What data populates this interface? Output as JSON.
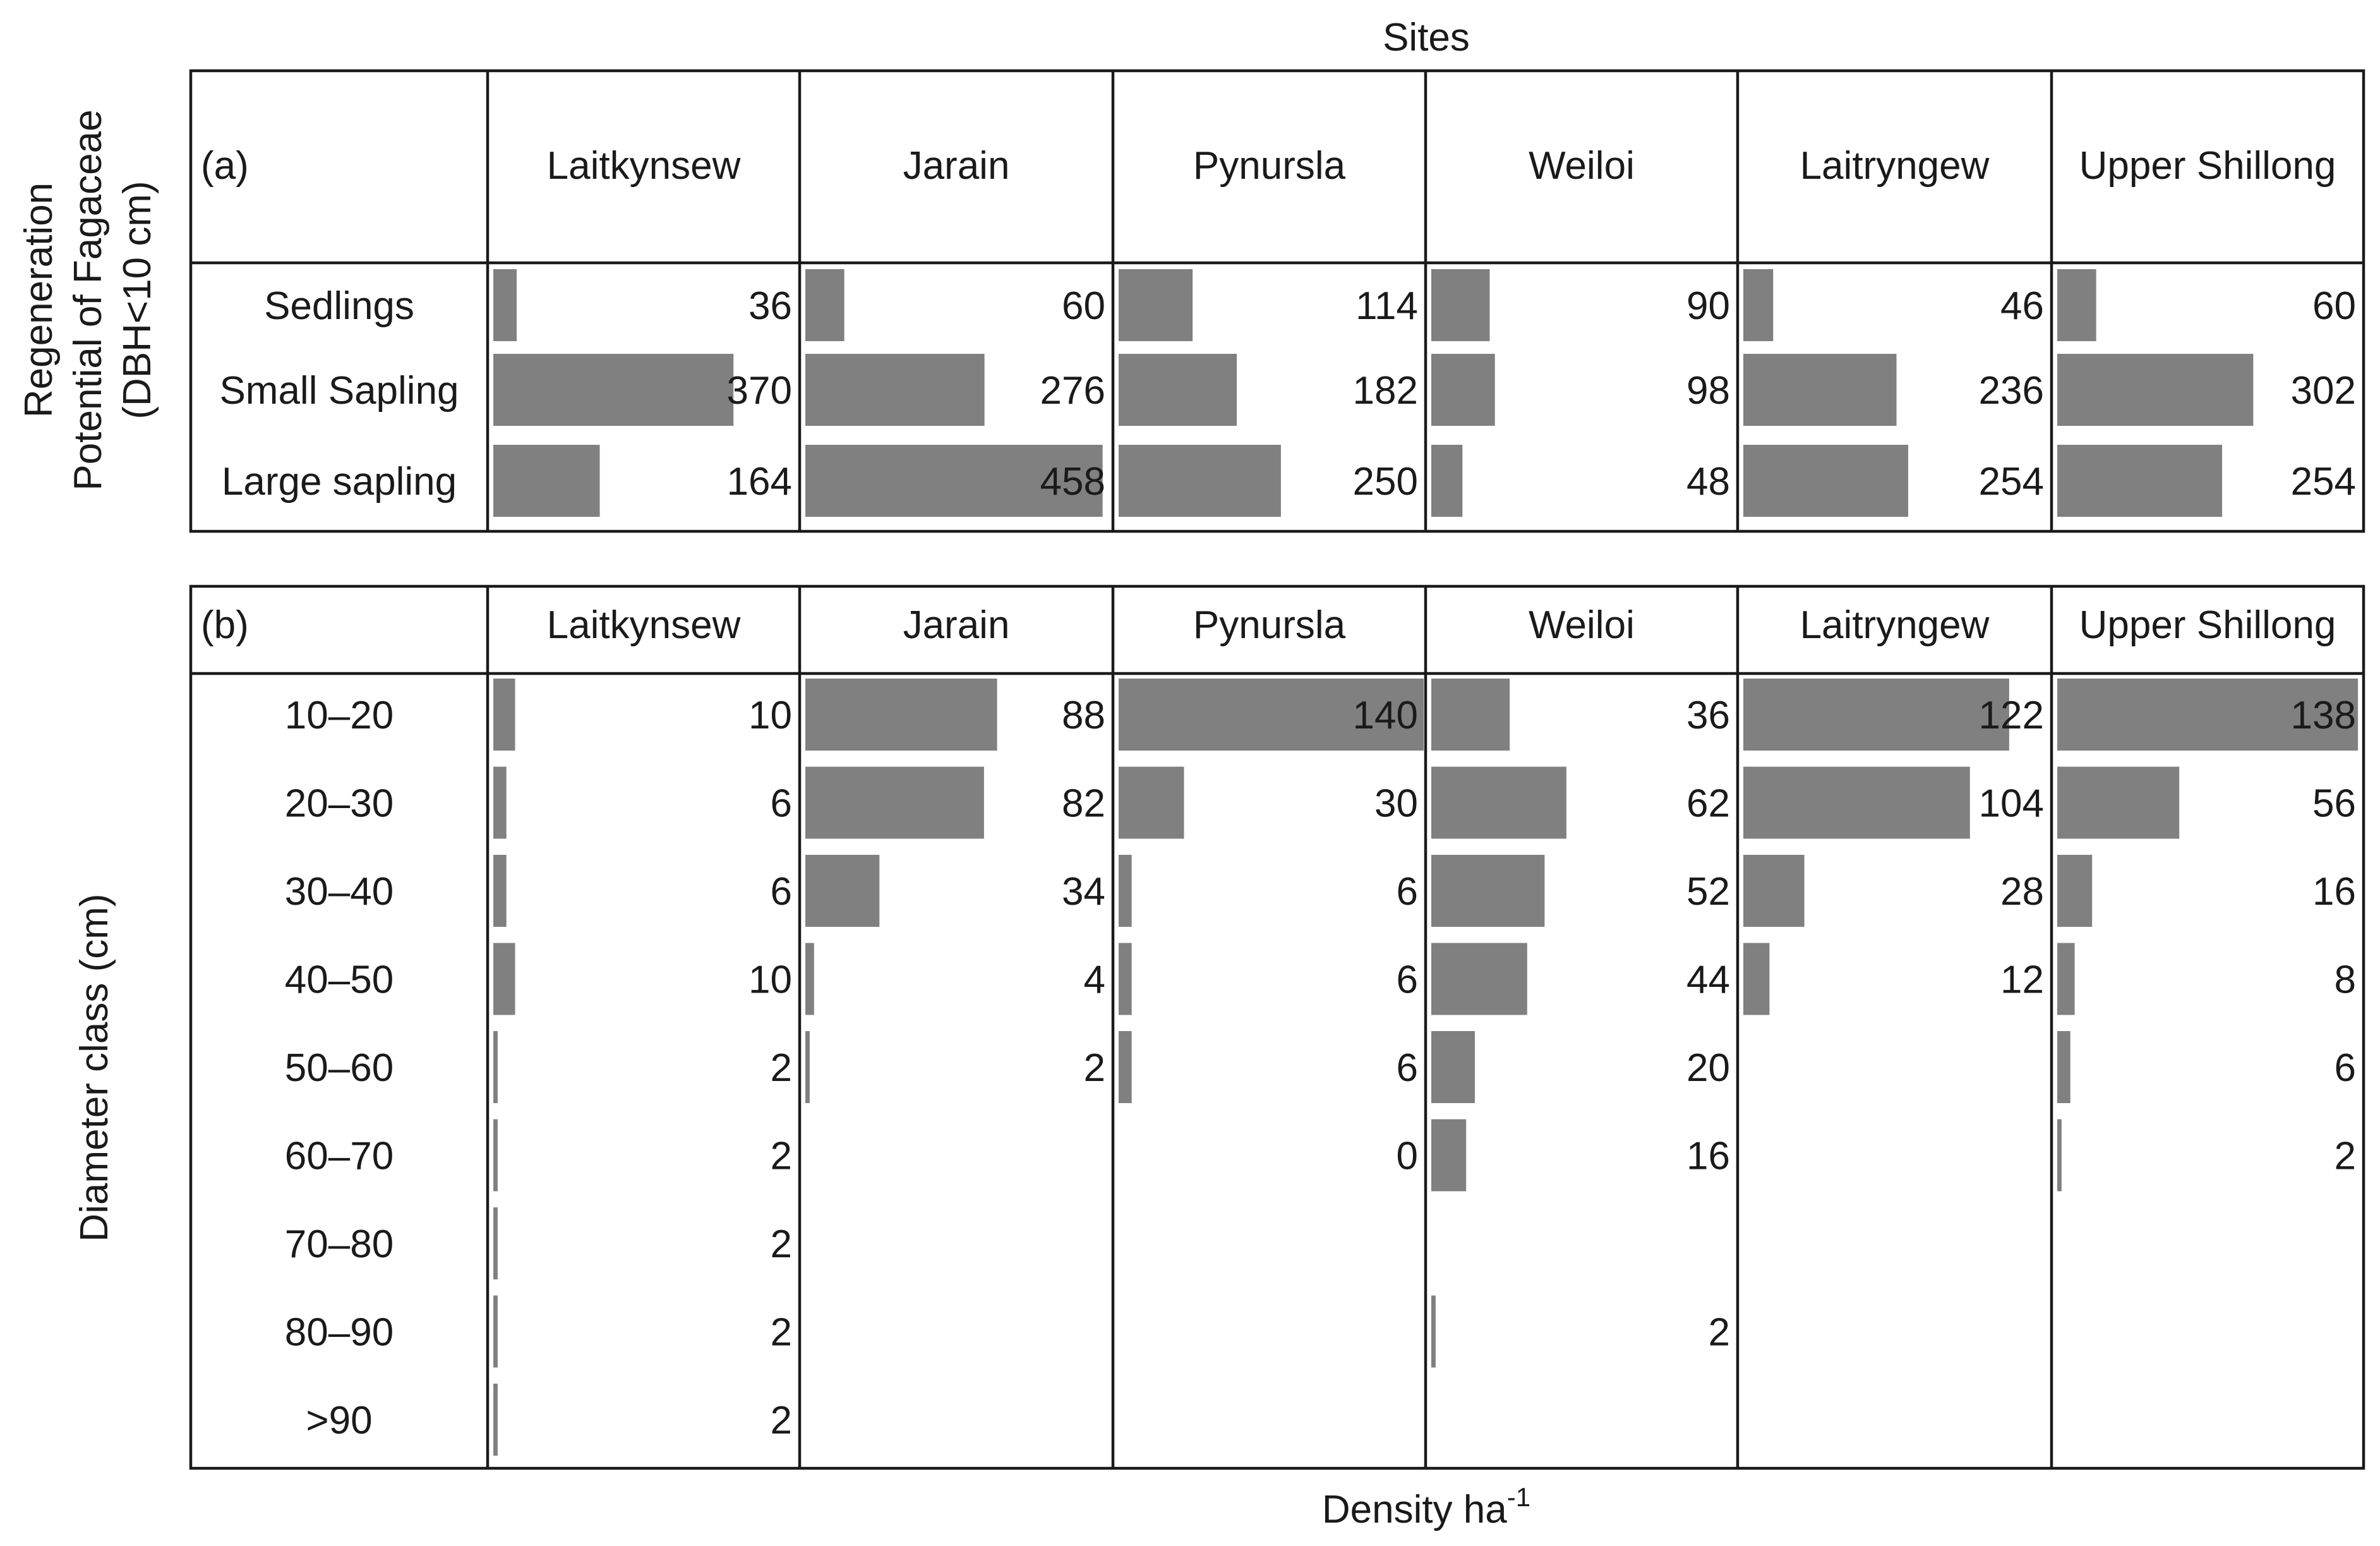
{
  "figure": {
    "sites_label": "Sites",
    "x_label": "Density ha",
    "x_label_superscript": "-1"
  },
  "bar_color": "#808080",
  "chart_data": [
    {
      "type": "bar",
      "orientation": "horizontal",
      "panel_label": "(a)",
      "ylabel_line1": "Regeneration",
      "ylabel_line2": "Potential of Fagaceae",
      "ylabel_line3": "(DBH<10 cm)",
      "sites": [
        "Laitkynsew",
        "Jarain",
        "Pynursla",
        "Weiloi",
        "Laitryngew",
        "Upper Shillong"
      ],
      "categories": [
        "Sedlings",
        "Small Sapling",
        "Large sapling"
      ],
      "values": [
        [
          36,
          370,
          164
        ],
        [
          60,
          276,
          458
        ],
        [
          114,
          182,
          250
        ],
        [
          90,
          98,
          48
        ],
        [
          46,
          236,
          254
        ],
        [
          60,
          302,
          254
        ]
      ],
      "xmax": 470
    },
    {
      "type": "bar",
      "orientation": "horizontal",
      "panel_label": "(b)",
      "ylabel": "Diameter class (cm)",
      "sites": [
        "Laitkynsew",
        "Jarain",
        "Pynursla",
        "Weiloi",
        "Laitryngew",
        "Upper Shillong"
      ],
      "categories": [
        "10–20",
        "20–30",
        "30–40",
        "40–50",
        "50–60",
        "60–70",
        "70–80",
        "80–90",
        ">90"
      ],
      "values": [
        [
          10,
          6,
          6,
          10,
          2,
          2,
          2,
          2,
          2
        ],
        [
          88,
          82,
          34,
          4,
          2,
          null,
          null,
          null,
          null
        ],
        [
          140,
          30,
          6,
          6,
          6,
          0,
          null,
          null,
          null
        ],
        [
          36,
          62,
          52,
          44,
          20,
          16,
          null,
          2,
          null
        ],
        [
          122,
          104,
          28,
          12,
          null,
          null,
          null,
          null,
          null
        ],
        [
          138,
          56,
          16,
          8,
          6,
          2,
          null,
          null,
          null
        ]
      ],
      "xmax": 140
    }
  ]
}
